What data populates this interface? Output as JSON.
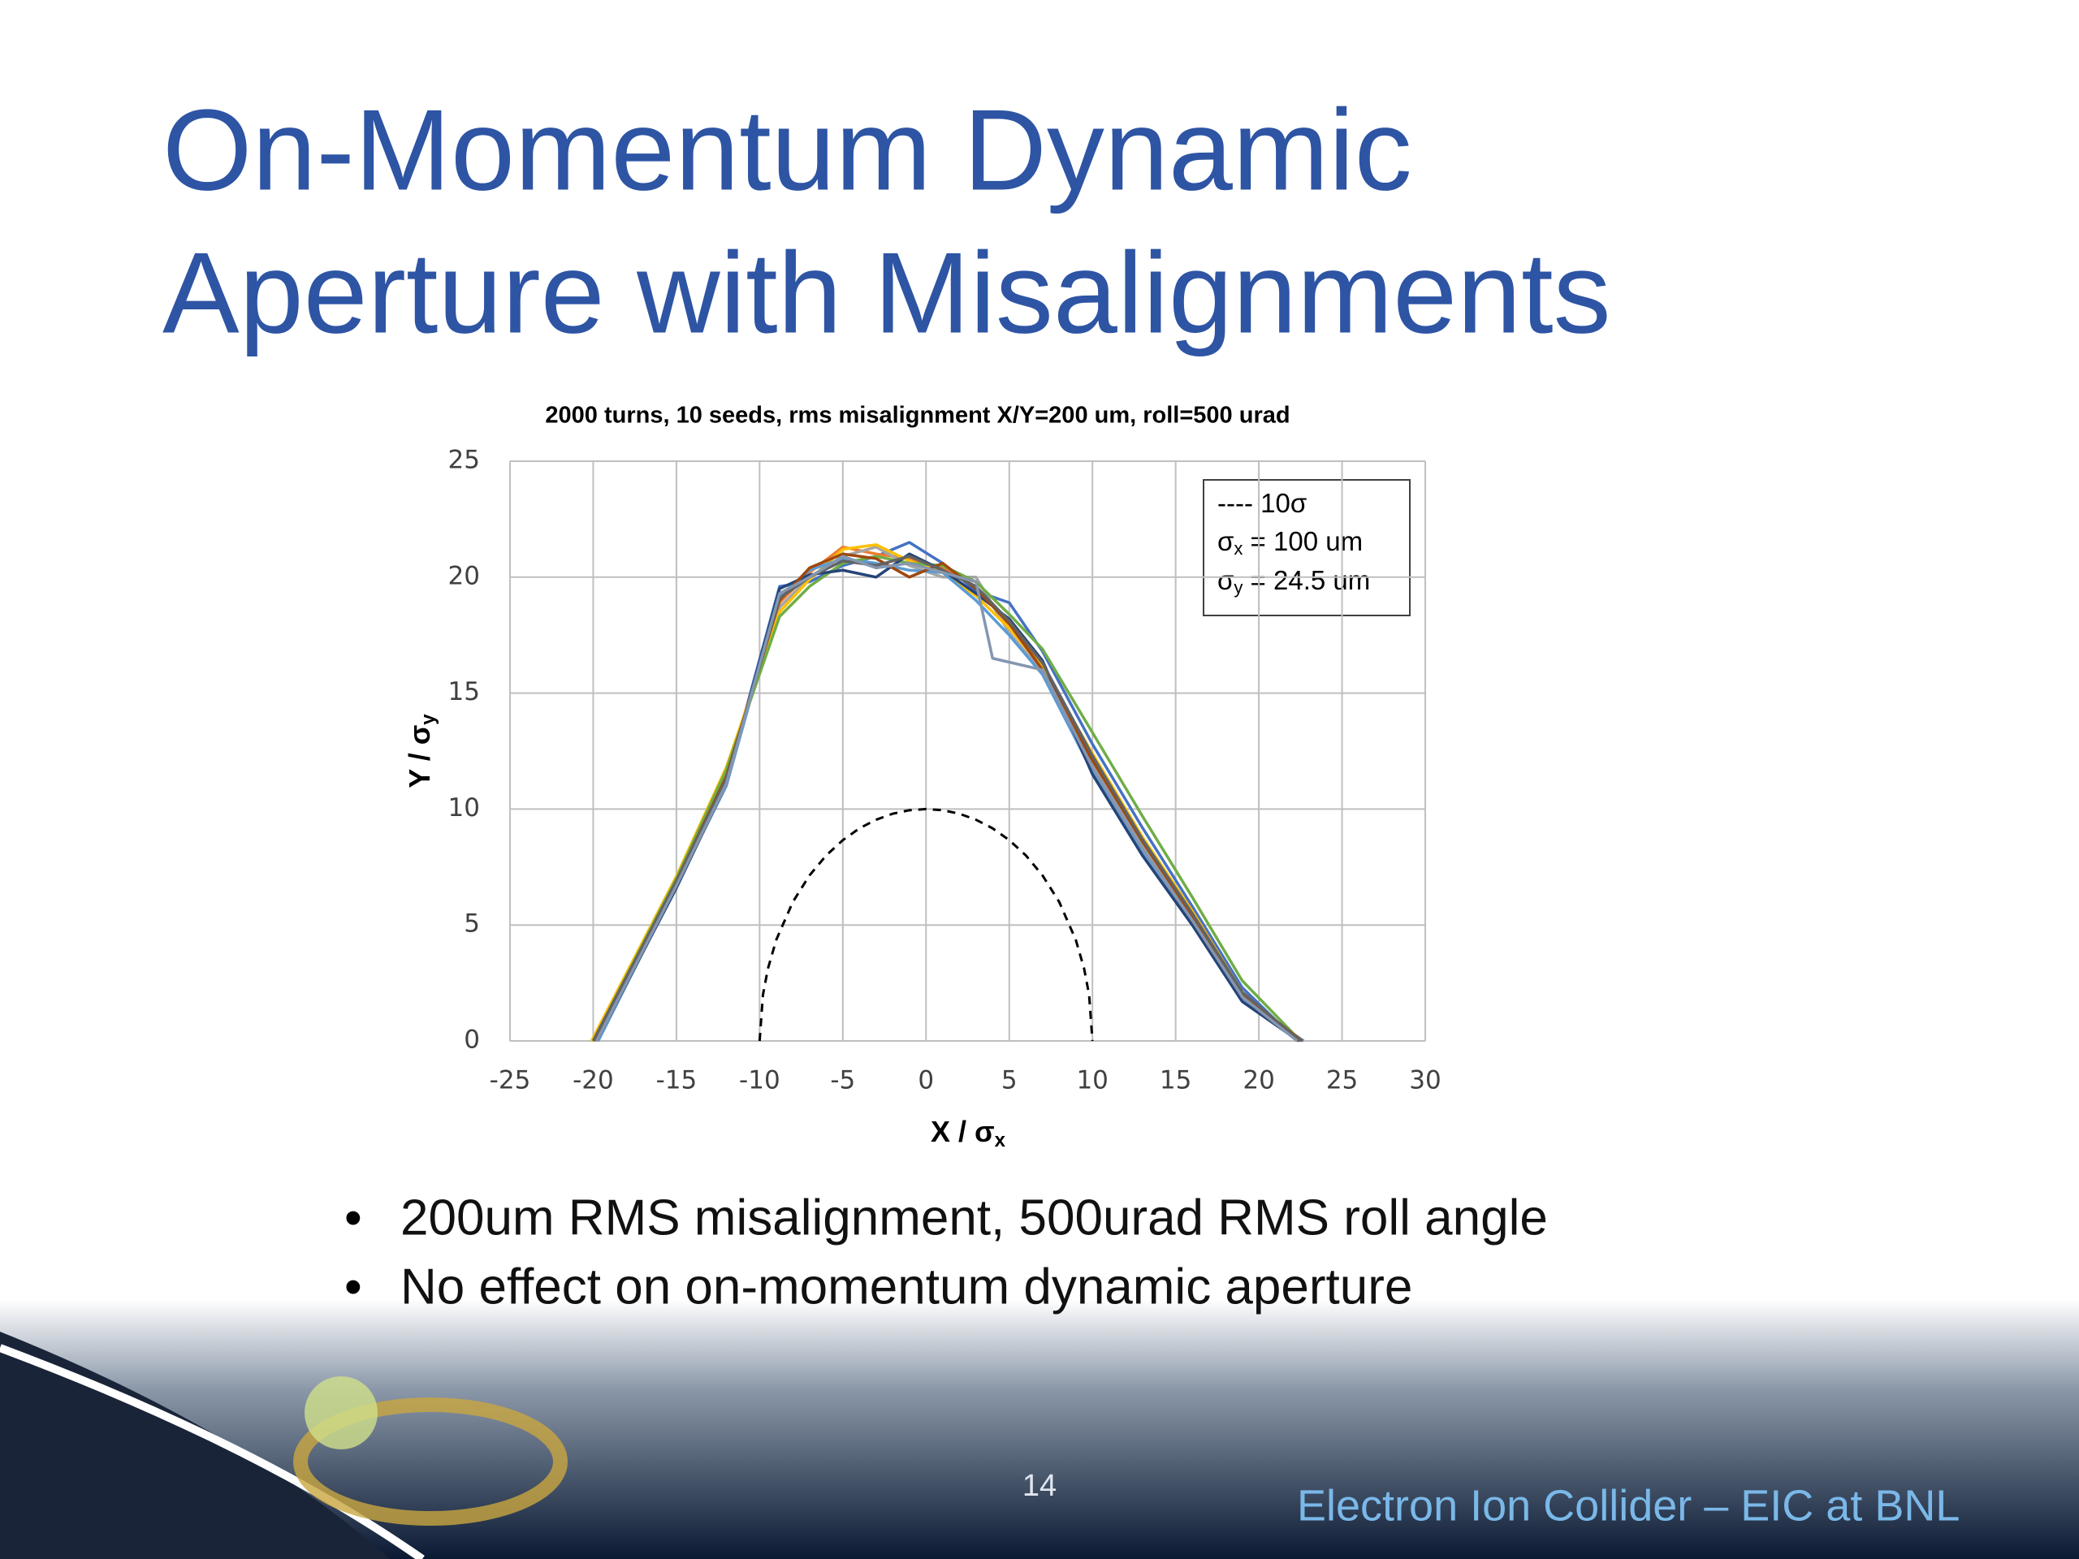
{
  "slide": {
    "title_lines": [
      "On-Momentum Dynamic",
      "Aperture with Misalignments"
    ],
    "bullets": [
      "200um RMS misalignment, 500urad RMS roll angle",
      "No effect on on-momentum dynamic aperture"
    ]
  },
  "footer": {
    "page_number": "14",
    "text": "Electron Ion Collider – EIC at BNL"
  },
  "chart_data": {
    "type": "line",
    "title": "2000 turns, 10 seeds, rms misalignment X/Y=200 um, roll=500 urad",
    "x_label": {
      "main": "X / σ",
      "sub": "x"
    },
    "y_label": {
      "main": "Y / σ",
      "sub": "y"
    },
    "annotations": [
      {
        "main": "---- 10σ"
      },
      {
        "main": "σ",
        "sub": "x",
        "rest": " = 100 um"
      },
      {
        "main": "σ",
        "sub": "y",
        "rest": " = 24.5 um"
      }
    ],
    "xlim": [
      -25,
      30
    ],
    "xticks": [
      -25,
      -20,
      -15,
      -10,
      -5,
      0,
      5,
      10,
      15,
      20,
      25,
      30
    ],
    "ylim": [
      0,
      25
    ],
    "yticks": [
      0,
      5,
      10,
      15,
      20,
      25
    ],
    "grid": true,
    "series": [
      {
        "color": "#4472c4",
        "x": [
          -19.8,
          -15,
          -12,
          -8.8,
          -7,
          -5,
          -3,
          -1,
          1,
          3,
          5,
          7,
          10,
          13,
          16,
          19,
          22.3
        ],
        "values": [
          0,
          6.8,
          11.2,
          19.6,
          19.8,
          20.5,
          20.9,
          21.5,
          20.6,
          19.4,
          18.9,
          16.8,
          12.8,
          9.2,
          5.8,
          2.3,
          0
        ]
      },
      {
        "color": "#ed7d31",
        "x": [
          -20,
          -15,
          -12,
          -8.8,
          -7,
          -5,
          -3,
          -1,
          1,
          3,
          5,
          7,
          10,
          13,
          16,
          19,
          22.5
        ],
        "values": [
          0,
          6.9,
          11.6,
          18.9,
          20.2,
          21.3,
          21.0,
          20.8,
          20.4,
          19.6,
          17.9,
          16.2,
          12.2,
          8.6,
          5.4,
          2.0,
          0
        ]
      },
      {
        "color": "#a5a5a5",
        "x": [
          -19.9,
          -15,
          -12,
          -8.8,
          -7,
          -5,
          -3,
          -1,
          1,
          3,
          5,
          7,
          10,
          13,
          16,
          19,
          22.6
        ],
        "values": [
          0,
          7.0,
          11.5,
          18.7,
          20.0,
          20.9,
          21.3,
          20.5,
          20.0,
          20.0,
          17.6,
          15.9,
          12.0,
          8.5,
          5.3,
          1.9,
          0
        ]
      },
      {
        "color": "#ffc000",
        "x": [
          -20.1,
          -15,
          -12,
          -8.8,
          -7,
          -5,
          -3,
          -1,
          1,
          3,
          5,
          7,
          10,
          13,
          16,
          19,
          22.4
        ],
        "values": [
          0,
          7.1,
          11.8,
          18.5,
          19.9,
          21.2,
          21.4,
          20.7,
          20.2,
          19.2,
          17.8,
          16.1,
          12.4,
          8.8,
          5.6,
          2.1,
          0
        ]
      },
      {
        "color": "#5b9bd5",
        "x": [
          -19.7,
          -15,
          -12,
          -8.8,
          -7,
          -5,
          -3,
          -1,
          1,
          3,
          5,
          7,
          10,
          13,
          16,
          19,
          22.7
        ],
        "values": [
          0,
          6.7,
          11.0,
          19.2,
          20.3,
          20.8,
          20.6,
          20.3,
          20.2,
          19.0,
          17.5,
          15.8,
          11.6,
          8.2,
          5.1,
          1.8,
          0
        ]
      },
      {
        "color": "#70ad47",
        "x": [
          -20,
          -15,
          -12,
          -8.8,
          -7,
          -5,
          -3,
          -1,
          1,
          3,
          5,
          7,
          10,
          13,
          16,
          19,
          22.5
        ],
        "values": [
          0,
          7.0,
          11.7,
          18.3,
          19.6,
          20.6,
          20.9,
          20.6,
          20.5,
          19.8,
          18.4,
          16.9,
          13.3,
          9.7,
          6.2,
          2.6,
          0
        ]
      },
      {
        "color": "#264478",
        "x": [
          -19.8,
          -15,
          -12,
          -8.8,
          -7,
          -5,
          -3,
          -1,
          1,
          3,
          5,
          7,
          10,
          13,
          16,
          19,
          22.4
        ],
        "values": [
          0,
          6.6,
          11.1,
          19.5,
          20.1,
          20.3,
          20.0,
          21.0,
          20.3,
          19.3,
          18.2,
          16.4,
          11.5,
          8.0,
          5.0,
          1.7,
          0
        ]
      },
      {
        "color": "#9e480e",
        "x": [
          -19.9,
          -15,
          -12,
          -8.8,
          -7,
          -5,
          -3,
          -1,
          1,
          3,
          5,
          7,
          10,
          13,
          16,
          19,
          22.6
        ],
        "values": [
          0,
          6.9,
          11.4,
          19.0,
          20.4,
          21.0,
          20.8,
          20.0,
          20.6,
          19.5,
          18.0,
          16.0,
          12.1,
          8.6,
          5.4,
          2.0,
          0
        ]
      },
      {
        "color": "#636363",
        "x": [
          -20,
          -15,
          -12,
          -8.8,
          -7,
          -5,
          -3,
          -1,
          1,
          3,
          5,
          7,
          10,
          13,
          16,
          19,
          22.5
        ],
        "values": [
          0,
          6.9,
          11.3,
          19.1,
          20.0,
          20.7,
          20.5,
          20.9,
          20.3,
          19.6,
          18.1,
          16.3,
          12.3,
          8.7,
          5.5,
          2.1,
          0
        ]
      },
      {
        "color": "#8497b0",
        "x": [
          -19.8,
          -15,
          -12,
          -8.8,
          -7,
          -5,
          -3,
          -1,
          1,
          3,
          4,
          7,
          10,
          13,
          16,
          19,
          22.3
        ],
        "values": [
          0,
          6.7,
          11.1,
          19.3,
          20.0,
          20.9,
          20.4,
          20.6,
          20.2,
          19.8,
          16.5,
          16.0,
          11.8,
          8.3,
          5.2,
          1.9,
          0
        ]
      },
      {
        "color": "#000000",
        "dashed": true,
        "x": [
          -10,
          -9.8,
          -9.5,
          -9,
          -8,
          -7,
          -6,
          -5,
          -4,
          -3,
          -2,
          -1,
          0,
          1,
          2,
          3,
          4,
          5,
          6,
          7,
          8,
          9,
          9.5,
          9.8,
          10
        ],
        "values": [
          0,
          1.99,
          3.12,
          4.36,
          6,
          7.14,
          8,
          8.66,
          9.17,
          9.54,
          9.8,
          9.95,
          10,
          9.95,
          9.8,
          9.54,
          9.17,
          8.66,
          8,
          7.14,
          6,
          4.36,
          3.12,
          1.99,
          0
        ]
      }
    ]
  }
}
